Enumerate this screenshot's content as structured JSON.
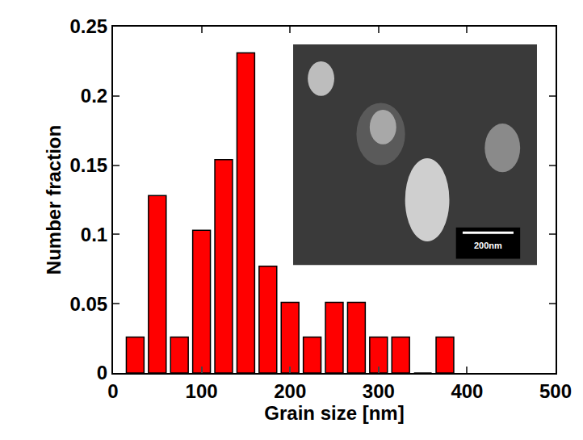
{
  "chart_data": {
    "type": "histogram",
    "x_label": "Grain size [nm]",
    "y_label": "Number fraction",
    "bins": [
      12.5,
      37.5,
      62.5,
      87.5,
      112.5,
      137.5,
      162.5,
      187.5,
      212.5,
      237.5,
      262.5,
      287.5,
      312.5,
      337.5,
      362.5,
      387.5
    ],
    "values": [
      0.026,
      0.128,
      0.026,
      0.103,
      0.154,
      0.231,
      0.077,
      0.051,
      0.026,
      0.051,
      0.051,
      0.026,
      0.026,
      0,
      0.026
    ],
    "color": "#ff0000",
    "xlim": [
      0,
      500
    ],
    "xticks": [
      0,
      100,
      200,
      300,
      400,
      500
    ],
    "ylim": [
      0,
      0.25
    ],
    "yticks": [
      0,
      0.05,
      0.1,
      0.15,
      0.2,
      0.25
    ],
    "grid": false,
    "annotations": [
      "200nm"
    ]
  }
}
